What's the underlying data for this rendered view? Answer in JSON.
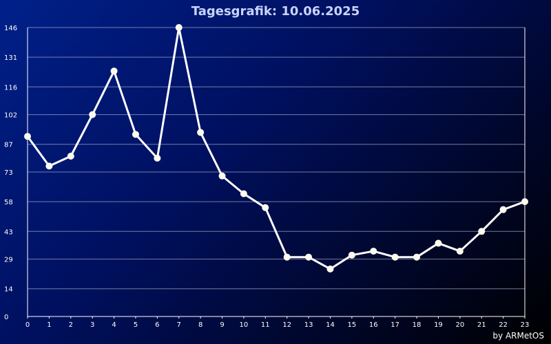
{
  "chart_data": {
    "type": "line",
    "title": "Tagesgrafik: 10.06.2025",
    "credit": "by ARMetOS",
    "x": [
      0,
      1,
      2,
      3,
      4,
      5,
      6,
      7,
      8,
      9,
      10,
      11,
      12,
      13,
      14,
      15,
      16,
      17,
      18,
      19,
      20,
      21,
      22,
      23
    ],
    "y_ticks": [
      0,
      14,
      29,
      43,
      58,
      73,
      87,
      102,
      116,
      131,
      146
    ],
    "ylim": [
      0,
      146
    ],
    "grid": true,
    "series": [
      {
        "values": [
          91,
          76,
          81,
          102,
          124,
          92,
          80,
          146,
          93,
          71,
          62,
          55,
          30,
          30,
          24,
          31,
          33,
          30,
          30,
          37,
          33,
          43,
          54,
          58
        ]
      }
    ],
    "colors": {
      "line": "#ffffff",
      "marker": "#fffbe6",
      "grid": "#9aa3c0",
      "title": "#c8d4ff"
    }
  }
}
